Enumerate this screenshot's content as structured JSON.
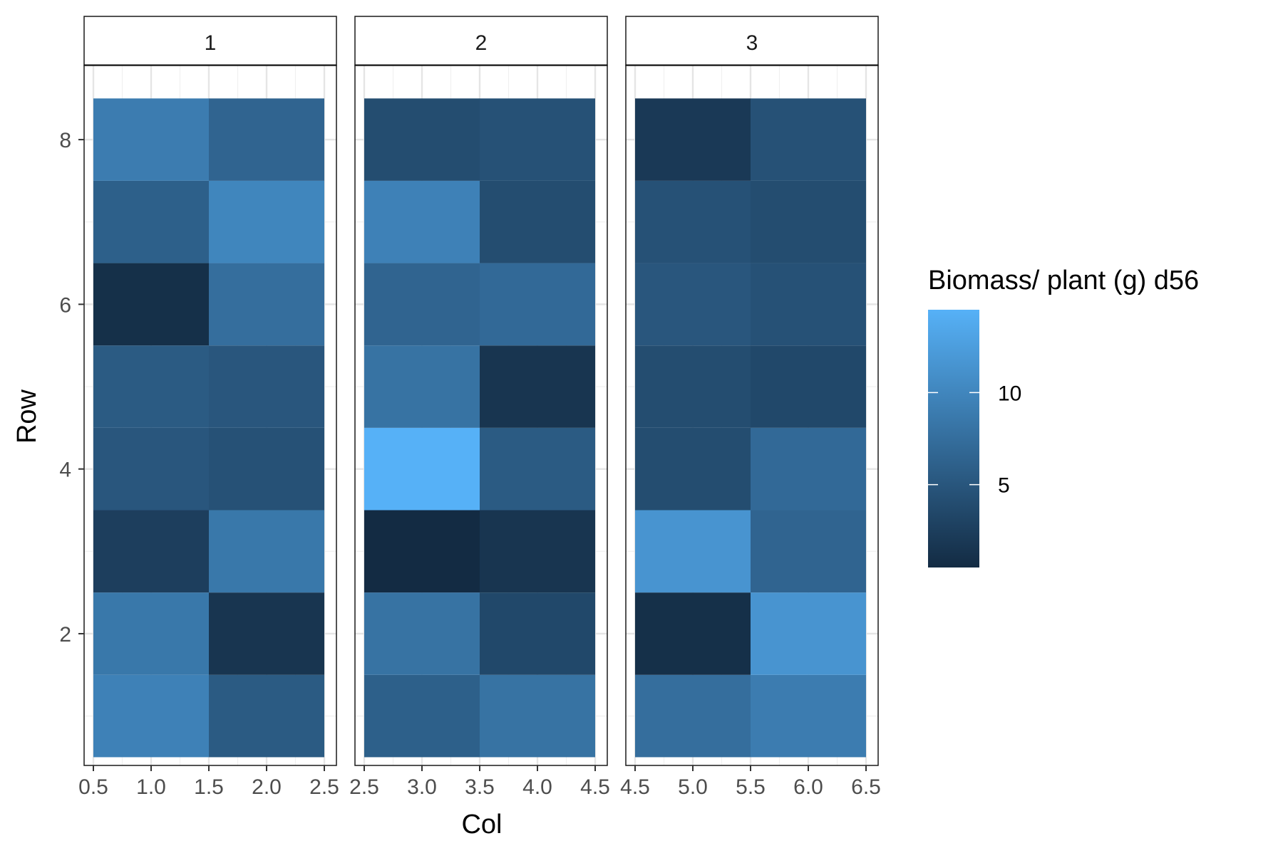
{
  "chart_data": {
    "type": "heatmap",
    "xlabel": "Col",
    "ylabel": "Row",
    "facets": [
      {
        "label": "1",
        "xlim": [
          0.5,
          2.5
        ],
        "x_ticks": [
          "0.5",
          "1.0",
          "1.5",
          "2.0",
          "2.5"
        ],
        "x_tick_values": [
          0.5,
          1.0,
          1.5,
          2.0,
          2.5
        ],
        "cols": [
          1,
          2
        ]
      },
      {
        "label": "2",
        "xlim": [
          2.5,
          4.5
        ],
        "x_ticks": [
          "2.5",
          "3.0",
          "3.5",
          "4.0",
          "4.5"
        ],
        "x_tick_values": [
          2.5,
          3.0,
          3.5,
          4.0,
          4.5
        ],
        "cols": [
          3,
          4
        ]
      },
      {
        "label": "3",
        "xlim": [
          4.5,
          6.5
        ],
        "x_ticks": [
          "4.5",
          "5.0",
          "5.5",
          "6.0",
          "6.5"
        ],
        "x_tick_values": [
          4.5,
          5.0,
          5.5,
          6.0,
          6.5
        ],
        "cols": [
          5,
          6
        ]
      }
    ],
    "rows": [
      1,
      2,
      3,
      4,
      5,
      6,
      7,
      8
    ],
    "ylim": [
      0.4,
      8.9
    ],
    "y_ticks": [
      "2",
      "4",
      "6",
      "8"
    ],
    "y_tick_values": [
      2,
      4,
      6,
      8
    ],
    "values_by_col": {
      "1": [
        9.5,
        8.5,
        2.5,
        5.0,
        5.5,
        1.0,
        6.0,
        9.0
      ],
      "2": [
        5.5,
        1.5,
        8.5,
        4.5,
        5.0,
        7.5,
        10.0,
        6.5
      ],
      "3": [
        6.0,
        8.0,
        0.5,
        14.5,
        8.0,
        6.5,
        9.5,
        4.0
      ],
      "4": [
        8.0,
        3.5,
        1.5,
        5.5,
        1.5,
        7.0,
        4.0,
        4.5
      ],
      "5": [
        7.5,
        1.0,
        11.5,
        4.0,
        4.0,
        5.0,
        4.5,
        2.0
      ],
      "6": [
        9.0,
        11.5,
        6.5,
        7.0,
        3.5,
        4.5,
        4.0,
        4.5
      ]
    },
    "legend": {
      "title": "Biomass/ plant (g) d56",
      "min": 0.5,
      "max": 14.5,
      "ticks": [
        5,
        10
      ],
      "tick_labels": [
        "5",
        "10"
      ],
      "low_color": "#132B43",
      "high_color": "#56B1F7",
      "placement": "right"
    },
    "grid": true
  }
}
